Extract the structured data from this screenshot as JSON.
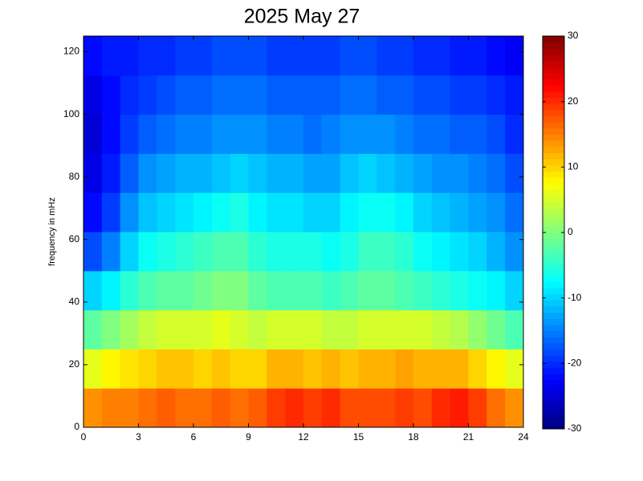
{
  "chart_data": {
    "type": "heatmap",
    "title": "2025 May 27",
    "ylabel": "frequency in mHz",
    "colormap": "jet",
    "x_bins": [
      0,
      1,
      2,
      3,
      4,
      5,
      6,
      7,
      8,
      9,
      10,
      11,
      12,
      13,
      14,
      15,
      16,
      17,
      18,
      19,
      20,
      21,
      22,
      23,
      24
    ],
    "y_bins": [
      0,
      12.5,
      25,
      37.5,
      50,
      62.5,
      75,
      87.5,
      100,
      112.5,
      125
    ],
    "values": [
      [
        14,
        15,
        15,
        16,
        17,
        16,
        16,
        17,
        16,
        17,
        19,
        20,
        19,
        20,
        18,
        18,
        18,
        19,
        18,
        20,
        21,
        19,
        16,
        14
      ],
      [
        6,
        8,
        9,
        10,
        11,
        11,
        10,
        11,
        10,
        10,
        12,
        12,
        11,
        12,
        11,
        12,
        12,
        13,
        12,
        12,
        12,
        10,
        8,
        6
      ],
      [
        -2,
        0,
        2,
        4,
        5,
        5,
        5,
        6,
        5,
        4,
        5,
        5,
        5,
        4,
        4,
        5,
        5,
        5,
        5,
        4,
        3,
        1,
        -1,
        -3
      ],
      [
        -10,
        -8,
        -5,
        -3,
        -2,
        -2,
        -1,
        0,
        0,
        -2,
        -3,
        -3,
        -3,
        -4,
        -3,
        -2,
        -2,
        -3,
        -4,
        -5,
        -6,
        -7,
        -8,
        -10
      ],
      [
        -18,
        -15,
        -10,
        -7,
        -6,
        -5,
        -4,
        -3,
        -3,
        -5,
        -6,
        -6,
        -6,
        -7,
        -6,
        -4,
        -4,
        -5,
        -7,
        -8,
        -9,
        -10,
        -12,
        -14
      ],
      [
        -22,
        -19,
        -14,
        -11,
        -10,
        -9,
        -8,
        -7,
        -6,
        -8,
        -9,
        -9,
        -10,
        -10,
        -8,
        -7,
        -7,
        -8,
        -10,
        -11,
        -12,
        -13,
        -14,
        -16
      ],
      [
        -24,
        -21,
        -17,
        -14,
        -13,
        -12,
        -12,
        -11,
        -10,
        -11,
        -12,
        -12,
        -13,
        -13,
        -11,
        -10,
        -11,
        -12,
        -13,
        -14,
        -14,
        -15,
        -16,
        -18
      ],
      [
        -25,
        -22,
        -19,
        -17,
        -16,
        -15,
        -15,
        -14,
        -14,
        -14,
        -15,
        -15,
        -16,
        -15,
        -14,
        -14,
        -14,
        -15,
        -16,
        -16,
        -17,
        -17,
        -18,
        -20
      ],
      [
        -24,
        -22,
        -20,
        -19,
        -18,
        -17,
        -17,
        -16,
        -16,
        -16,
        -17,
        -17,
        -17,
        -17,
        -16,
        -16,
        -17,
        -17,
        -18,
        -18,
        -19,
        -19,
        -20,
        -21
      ],
      [
        -22,
        -21,
        -21,
        -20,
        -20,
        -19,
        -19,
        -18,
        -18,
        -18,
        -19,
        -19,
        -19,
        -19,
        -18,
        -18,
        -19,
        -19,
        -20,
        -20,
        -21,
        -21,
        -22,
        -23
      ]
    ],
    "xlim": [
      0,
      24
    ],
    "xticks": [
      0,
      3,
      6,
      9,
      12,
      15,
      18,
      21,
      24
    ],
    "ylim": [
      0,
      125
    ],
    "yticks": [
      0,
      20,
      40,
      60,
      80,
      100,
      120
    ],
    "clim": [
      -30,
      30
    ],
    "cticks": [
      -30,
      -20,
      -10,
      0,
      10,
      20,
      30
    ]
  }
}
